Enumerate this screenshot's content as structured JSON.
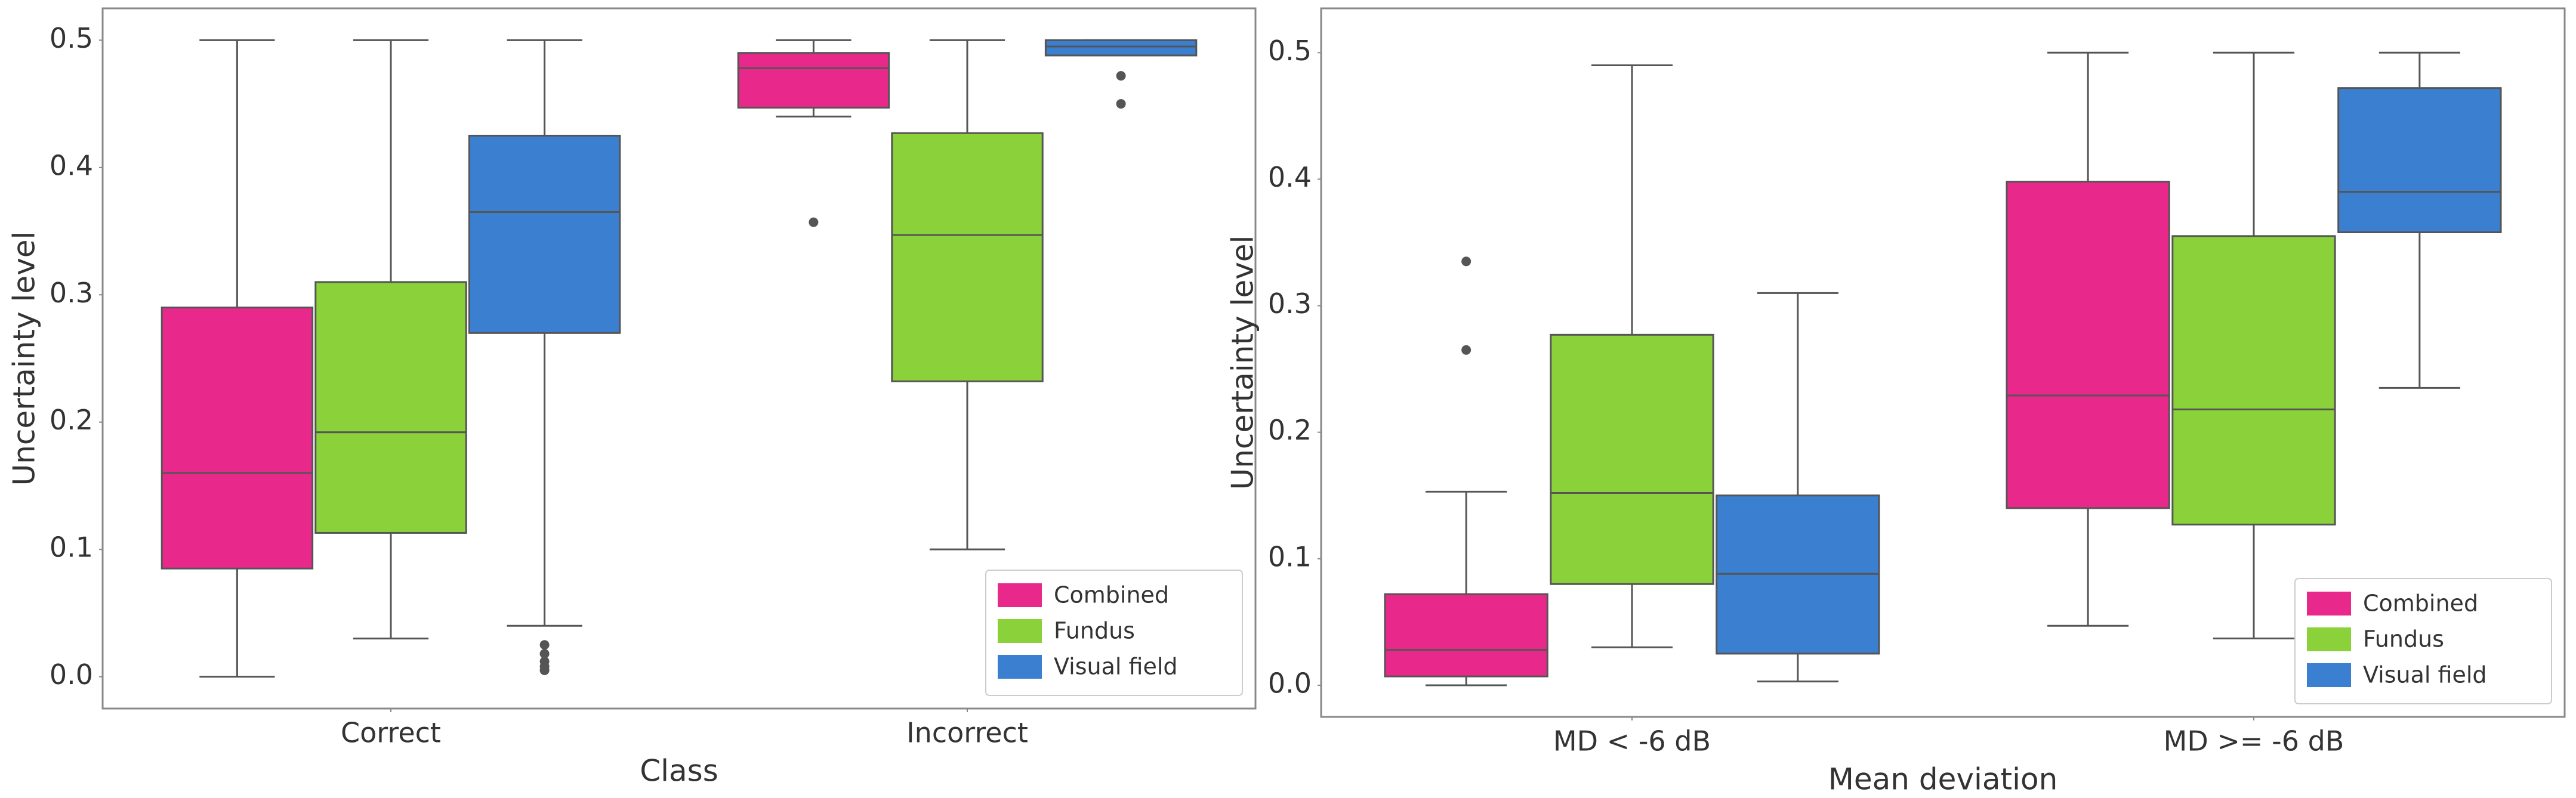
{
  "chart_data": [
    {
      "type": "box",
      "xlabel": "Class",
      "ylabel": "Uncertainty level",
      "categories": [
        "Correct",
        "Incorrect"
      ],
      "ylim": [
        -0.025,
        0.525
      ],
      "yticks": [
        {
          "value": 0,
          "label": "0.0"
        },
        0.1,
        0.2,
        0.3,
        0.4,
        0.5
      ],
      "legend": "lower right",
      "series": [
        {
          "name": "Combined",
          "color": "#e8288a",
          "stats": [
            {
              "whislo": 0.0,
              "q1": 0.085,
              "med": 0.16,
              "q3": 0.29,
              "whishi": 0.5,
              "fliers": []
            },
            {
              "whislo": 0.44,
              "q1": 0.447,
              "med": 0.478,
              "q3": 0.49,
              "whishi": 0.5,
              "fliers": [
                0.357
              ]
            }
          ]
        },
        {
          "name": "Fundus",
          "color": "#8bd13a",
          "stats": [
            {
              "whislo": 0.03,
              "q1": 0.113,
              "med": 0.192,
              "q3": 0.31,
              "whishi": 0.5,
              "fliers": []
            },
            {
              "whislo": 0.1,
              "q1": 0.232,
              "med": 0.347,
              "q3": 0.427,
              "whishi": 0.5,
              "fliers": []
            }
          ]
        },
        {
          "name": "Visual field",
          "color": "#3a7fd0",
          "stats": [
            {
              "whislo": 0.04,
              "q1": 0.27,
              "med": 0.365,
              "q3": 0.425,
              "whishi": 0.5,
              "fliers": [
                0.025,
                0.018,
                0.012,
                0.008,
                0.005
              ]
            },
            {
              "whislo": 0.488,
              "q1": 0.488,
              "med": 0.495,
              "q3": 0.5,
              "whishi": 0.5,
              "fliers": [
                0.472,
                0.45
              ]
            }
          ]
        }
      ]
    },
    {
      "type": "box",
      "xlabel": "Mean deviation",
      "ylabel": "Uncertainty level",
      "categories": [
        "MD < -6 dB",
        "MD >= -6 dB"
      ],
      "ylim": [
        -0.025,
        0.535
      ],
      "yticks": [
        {
          "value": 0,
          "label": "0.0"
        },
        0.1,
        0.2,
        0.3,
        0.4,
        0.5
      ],
      "legend": "lower right",
      "series": [
        {
          "name": "Combined",
          "color": "#e8288a",
          "stats": [
            {
              "whislo": 0.0,
              "q1": 0.007,
              "med": 0.028,
              "q3": 0.072,
              "whishi": 0.153,
              "fliers": [
                0.265,
                0.335
              ]
            },
            {
              "whislo": 0.047,
              "q1": 0.14,
              "med": 0.229,
              "q3": 0.398,
              "whishi": 0.5,
              "fliers": []
            }
          ]
        },
        {
          "name": "Fundus",
          "color": "#8bd13a",
          "stats": [
            {
              "whislo": 0.03,
              "q1": 0.08,
              "med": 0.152,
              "q3": 0.277,
              "whishi": 0.49,
              "fliers": []
            },
            {
              "whislo": 0.037,
              "q1": 0.127,
              "med": 0.218,
              "q3": 0.355,
              "whishi": 0.5,
              "fliers": []
            }
          ]
        },
        {
          "name": "Visual field",
          "color": "#3a7fd0",
          "stats": [
            {
              "whislo": 0.003,
              "q1": 0.025,
              "med": 0.088,
              "q3": 0.15,
              "whishi": 0.31,
              "fliers": []
            },
            {
              "whislo": 0.235,
              "q1": 0.358,
              "med": 0.39,
              "q3": 0.472,
              "whishi": 0.5,
              "fliers": []
            }
          ]
        }
      ]
    }
  ]
}
